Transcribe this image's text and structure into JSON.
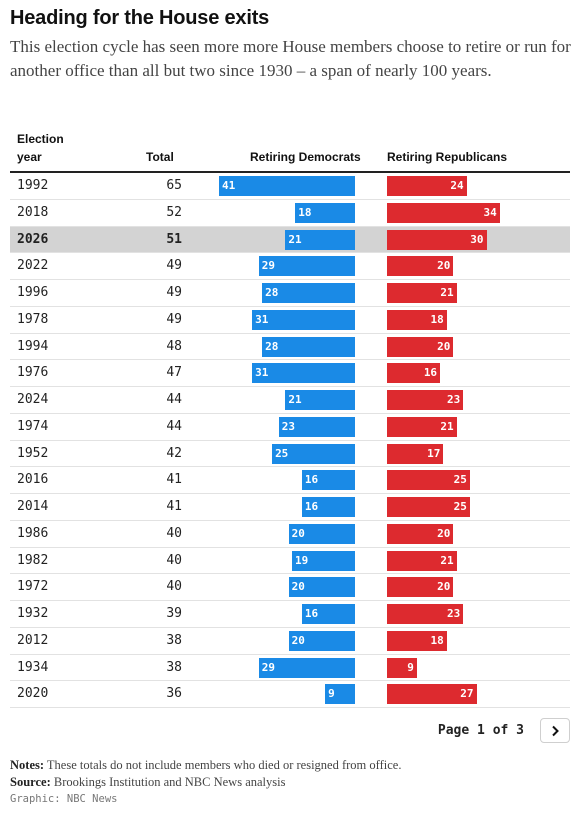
{
  "header": {
    "title": "Heading for the House exits",
    "subtitle": "This election cycle has seen more more House members choose to retire or run for another office than all but two since 1930 – a span of nearly 100 years."
  },
  "table": {
    "columns": {
      "year": "Election year",
      "total": "Total",
      "dem": "Retiring Democrats",
      "rep": "Retiring Republicans"
    },
    "highlight_year": "2026"
  },
  "colors": {
    "democrats": "#1a8ae6",
    "republicans": "#dd2a2f",
    "highlight_row": "#d3d3d3"
  },
  "chart_data": {
    "type": "bar",
    "categories": [
      "1992",
      "2018",
      "2026",
      "2022",
      "1996",
      "1978",
      "1994",
      "1976",
      "2024",
      "1974",
      "1952",
      "2016",
      "2014",
      "1986",
      "1982",
      "1972",
      "1932",
      "2012",
      "1934",
      "2020"
    ],
    "totals": [
      65,
      52,
      51,
      49,
      49,
      49,
      48,
      47,
      44,
      44,
      42,
      41,
      41,
      40,
      40,
      40,
      39,
      38,
      38,
      36
    ],
    "series": [
      {
        "name": "Retiring Democrats",
        "values": [
          41,
          18,
          21,
          29,
          28,
          31,
          28,
          31,
          21,
          23,
          25,
          16,
          16,
          20,
          19,
          20,
          16,
          20,
          29,
          9
        ]
      },
      {
        "name": "Retiring Republicans",
        "values": [
          24,
          34,
          30,
          20,
          21,
          18,
          20,
          16,
          23,
          21,
          17,
          25,
          25,
          20,
          21,
          20,
          23,
          18,
          9,
          27
        ]
      }
    ],
    "xlim": [
      0,
      41
    ]
  },
  "pagination": {
    "text": "Page 1 of 3",
    "next_icon": "chevron-right-icon"
  },
  "footer": {
    "notes_label": "Notes:",
    "notes_text": " These totals do not include members who died or resigned from office.",
    "source_label": "Source:",
    "source_text": " Brookings Institution and NBC News analysis",
    "credit": "Graphic: NBC News"
  }
}
